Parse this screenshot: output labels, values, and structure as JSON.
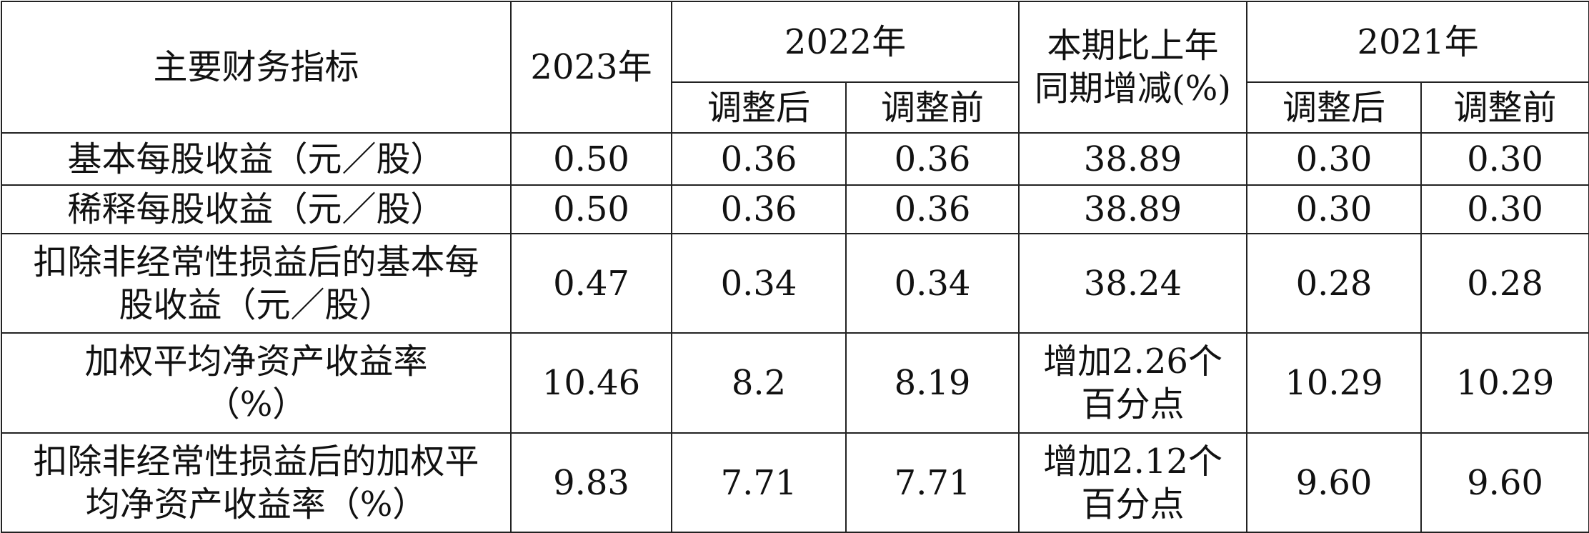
{
  "table": {
    "header": {
      "indicator": "主要财务指标",
      "y2023": "2023年",
      "y2022": "2022年",
      "change": [
        "本期比上年",
        "同期增减(%)"
      ],
      "y2021": "2021年",
      "sub": [
        "调整后",
        "调整前",
        "调整后",
        "调整前"
      ]
    },
    "rows": [
      [
        "基本每股收益（元／股）",
        "0.50",
        "0.36",
        "0.36",
        "38.89",
        "0.30",
        "0.30"
      ],
      [
        "稀释每股收益（元／股）",
        "0.50",
        "0.36",
        "0.36",
        "38.89",
        "0.30",
        "0.30"
      ],
      [
        [
          "扣除非经常性损益后的基本每",
          "股收益（元／股）"
        ],
        "0.47",
        "0.34",
        "0.34",
        "38.24",
        "0.28",
        "0.28"
      ],
      [
        [
          "加权平均净资产收益率",
          "（%）"
        ],
        "10.46",
        "8.2",
        "8.19",
        [
          "增加2.26个",
          "百分点"
        ],
        "10.29",
        "10.29"
      ],
      [
        [
          "扣除非经常性损益后的加权平",
          "均净资产收益率（%）"
        ],
        "9.83",
        "7.71",
        "7.71",
        [
          "增加2.12个",
          "百分点"
        ],
        "9.60",
        "9.60"
      ]
    ]
  }
}
